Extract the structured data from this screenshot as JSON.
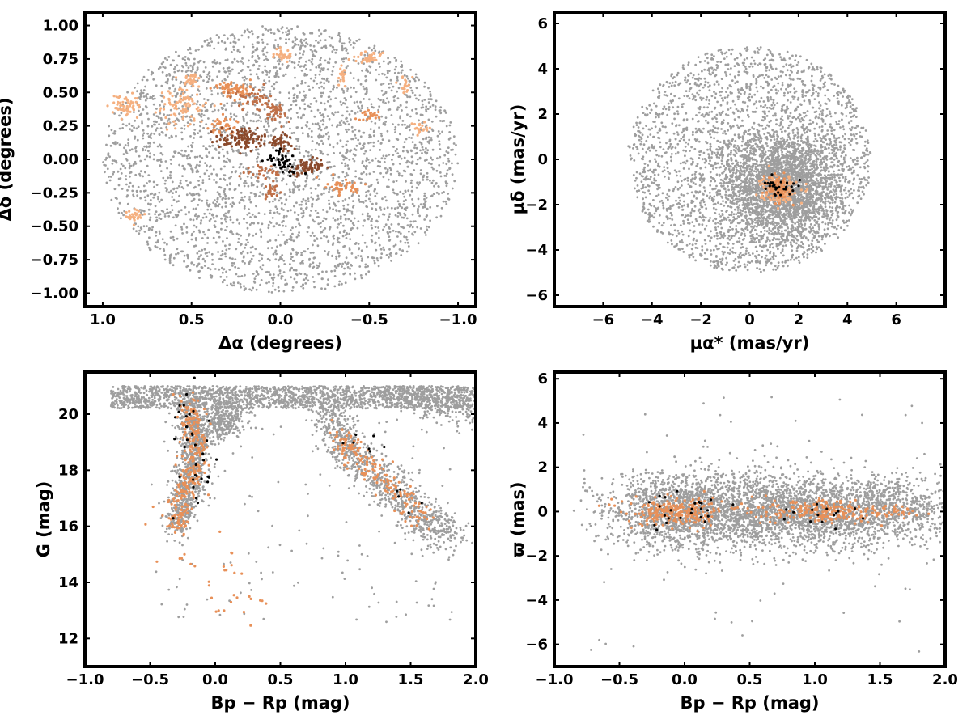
{
  "colors": {
    "field": "#9e9e9e",
    "members": [
      "#f5b080",
      "#e89058",
      "#c07048",
      "#8b4a2c"
    ],
    "core": "#000000"
  },
  "chart_data": [
    {
      "id": "sky",
      "type": "scatter",
      "xlabel": "Δα (degrees)",
      "ylabel": "Δδ (degrees)",
      "xlim": [
        1.1,
        -1.1
      ],
      "ylim": [
        -1.1,
        1.1
      ],
      "x_inverted": true,
      "xticks": [
        1.0,
        0.5,
        0.0,
        -0.5,
        -1.0
      ],
      "xtick_labels": [
        "1.0",
        "0.5",
        "0.0",
        "−0.5",
        "−1.0"
      ],
      "yticks": [
        1.0,
        0.75,
        0.5,
        0.25,
        0.0,
        -0.25,
        -0.5,
        -0.75,
        -1.0
      ],
      "ytick_labels": [
        "1.00",
        "0.75",
        "0.50",
        "0.25",
        "0.00",
        "−0.25",
        "−0.50",
        "−0.75",
        "−1.00"
      ],
      "field": {
        "shape": "disk",
        "center": [
          0,
          0
        ],
        "radius": 1.0,
        "count": 3200
      },
      "groups": [
        {
          "color_index": 0,
          "center": [
            0.87,
            0.4
          ],
          "spread": [
            0.04,
            0.04
          ],
          "count": 60
        },
        {
          "color_index": 0,
          "center": [
            0.55,
            0.42
          ],
          "spread": [
            0.06,
            0.08
          ],
          "count": 90
        },
        {
          "color_index": 0,
          "center": [
            0.5,
            0.6
          ],
          "spread": [
            0.02,
            0.02
          ],
          "count": 25
        },
        {
          "color_index": 1,
          "center": [
            0.32,
            0.25
          ],
          "spread": [
            0.04,
            0.03
          ],
          "count": 40
        },
        {
          "color_index": 0,
          "center": [
            0.82,
            -0.42
          ],
          "spread": [
            0.03,
            0.03
          ],
          "count": 30
        },
        {
          "color_index": 1,
          "center": [
            0.27,
            0.52
          ],
          "spread": [
            0.05,
            0.04
          ],
          "count": 70
        },
        {
          "color_index": 2,
          "center": [
            0.15,
            0.45
          ],
          "spread": [
            0.05,
            0.04
          ],
          "count": 45
        },
        {
          "color_index": 3,
          "center": [
            0.22,
            0.16
          ],
          "spread": [
            0.07,
            0.04
          ],
          "count": 110
        },
        {
          "color_index": 2,
          "center": [
            0.02,
            0.35
          ],
          "spread": [
            0.04,
            0.04
          ],
          "count": 40
        },
        {
          "color_index": 3,
          "center": [
            0.0,
            0.13
          ],
          "spread": [
            0.03,
            0.03
          ],
          "count": 40
        },
        {
          "color_index": 3,
          "center": [
            -0.15,
            -0.05
          ],
          "spread": [
            0.05,
            0.03
          ],
          "count": 65
        },
        {
          "color_index": 2,
          "center": [
            0.1,
            -0.1
          ],
          "spread": [
            0.05,
            0.03
          ],
          "count": 30
        },
        {
          "color_index": 2,
          "center": [
            0.05,
            -0.24
          ],
          "spread": [
            0.03,
            0.03
          ],
          "count": 25
        },
        {
          "color_index": 1,
          "center": [
            -0.35,
            -0.2
          ],
          "spread": [
            0.04,
            0.03
          ],
          "count": 45
        },
        {
          "color_index": 0,
          "center": [
            -0.02,
            0.78
          ],
          "spread": [
            0.03,
            0.02
          ],
          "count": 30
        },
        {
          "color_index": 0,
          "center": [
            -0.5,
            0.75
          ],
          "spread": [
            0.05,
            0.03
          ],
          "count": 35
        },
        {
          "color_index": 0,
          "center": [
            -0.35,
            0.62
          ],
          "spread": [
            0.02,
            0.04
          ],
          "count": 20
        },
        {
          "color_index": 0,
          "center": [
            -0.7,
            0.55
          ],
          "spread": [
            0.02,
            0.04
          ],
          "count": 20
        },
        {
          "color_index": 1,
          "center": [
            -0.5,
            0.33
          ],
          "spread": [
            0.03,
            0.02
          ],
          "count": 25
        },
        {
          "color_index": 0,
          "center": [
            -0.78,
            0.23
          ],
          "spread": [
            0.02,
            0.02
          ],
          "count": 20
        },
        {
          "color_index": -1,
          "center": [
            -0.02,
            -0.02
          ],
          "spread": [
            0.04,
            0.05
          ],
          "count": 45
        }
      ]
    },
    {
      "id": "propermotion",
      "type": "scatter",
      "xlabel": "μα* (mas/yr)",
      "ylabel": "μδ (mas/yr)",
      "xlim": [
        -8,
        8
      ],
      "ylim": [
        -6.5,
        6.5
      ],
      "xticks": [
        -6,
        -4,
        -2,
        0,
        2,
        4,
        6
      ],
      "xtick_labels": [
        "−6",
        "−4",
        "−2",
        "0",
        "2",
        "4",
        "6"
      ],
      "yticks": [
        6,
        4,
        2,
        0,
        -2,
        -4,
        -6
      ],
      "ytick_labels": [
        "6",
        "4",
        "2",
        "0",
        "−2",
        "−4",
        "−6"
      ],
      "field": {
        "shape": "disk",
        "center": [
          0,
          0
        ],
        "radius": 5.0,
        "count": 2400
      },
      "field_core": {
        "center": [
          1.3,
          -1.2
        ],
        "spread": [
          1.2,
          1.2
        ],
        "count": 2600
      },
      "groups": [
        {
          "color_index": 0,
          "center": [
            1.2,
            -1.3
          ],
          "spread": [
            0.35,
            0.3
          ],
          "count": 160
        },
        {
          "color_index": 1,
          "center": [
            1.1,
            -1.3
          ],
          "spread": [
            0.25,
            0.25
          ],
          "count": 80
        },
        {
          "color_index": -1,
          "center": [
            1.4,
            -1.3
          ],
          "spread": [
            0.4,
            0.2
          ],
          "count": 30
        }
      ]
    },
    {
      "id": "cmd",
      "type": "scatter",
      "xlabel": "Bp − Rp (mag)",
      "ylabel": "G (mag)",
      "xlim": [
        -1.0,
        2.0
      ],
      "ylim": [
        11,
        21.5
      ],
      "y_inverted": false,
      "xticks": [
        -1.0,
        -0.5,
        0.0,
        0.5,
        1.0,
        1.5,
        2.0
      ],
      "xtick_labels": [
        "−1.0",
        "−0.5",
        "0.0",
        "0.5",
        "1.0",
        "1.5",
        "2.0"
      ],
      "yticks": [
        20,
        18,
        16,
        14,
        12
      ],
      "ytick_labels": [
        "20",
        "18",
        "16",
        "14",
        "12"
      ],
      "field_regions": [
        {
          "kind": "band",
          "x": [
            -0.8,
            2.0
          ],
          "y": [
            20.2,
            21.0
          ],
          "count": 1800
        },
        {
          "kind": "track",
          "points": [
            [
              -0.2,
              20.4
            ],
            [
              -0.15,
              19.0
            ],
            [
              -0.2,
              17.5
            ],
            [
              -0.3,
              16.0
            ]
          ],
          "spread": [
            0.06,
            0.35
          ],
          "count": 900
        },
        {
          "kind": "track",
          "points": [
            [
              0.0,
              20.0
            ],
            [
              0.05,
              19.5
            ],
            [
              0.2,
              20.2
            ]
          ],
          "spread": [
            0.06,
            0.3
          ],
          "count": 300
        },
        {
          "kind": "track",
          "points": [
            [
              0.85,
              20.3
            ],
            [
              1.0,
              18.8
            ],
            [
              1.3,
              17.5
            ],
            [
              1.6,
              16.3
            ],
            [
              1.8,
              15.6
            ]
          ],
          "spread": [
            0.08,
            0.35
          ],
          "count": 900
        },
        {
          "kind": "track",
          "points": [
            [
              1.4,
              21.0
            ],
            [
              2.0,
              19.8
            ]
          ],
          "spread": [
            0.15,
            0.3
          ],
          "count": 300
        },
        {
          "kind": "scatter",
          "x": [
            -0.5,
            1.9
          ],
          "y": [
            12.5,
            20.0
          ],
          "count": 140
        }
      ],
      "groups": [
        {
          "color_index": 1,
          "track": [
            [
              -0.2,
              20.4
            ],
            [
              -0.15,
              19.0
            ],
            [
              -0.2,
              17.5
            ],
            [
              -0.3,
              16.0
            ]
          ],
          "spread": [
            0.05,
            0.3
          ],
          "count": 260
        },
        {
          "color_index": 1,
          "track": [
            [
              0.95,
              19.2
            ],
            [
              1.1,
              18.6
            ],
            [
              1.35,
              17.4
            ],
            [
              1.6,
              16.2
            ]
          ],
          "spread": [
            0.06,
            0.25
          ],
          "count": 170
        },
        {
          "color_index": 1,
          "track": [
            [
              -0.4,
              16.5
            ],
            [
              0.0,
              13.5
            ],
            [
              0.3,
              14.0
            ]
          ],
          "spread": [
            0.15,
            0.6
          ],
          "count": 40
        },
        {
          "color_index": -1,
          "track": [
            [
              -0.2,
              20.3
            ],
            [
              -0.1,
              18.5
            ],
            [
              -0.2,
              16.5
            ]
          ],
          "spread": [
            0.06,
            0.4
          ],
          "count": 35
        },
        {
          "color_index": -1,
          "track": [
            [
              0.9,
              19.0
            ],
            [
              1.2,
              18.8
            ],
            [
              1.5,
              16.8
            ]
          ],
          "spread": [
            0.1,
            0.3
          ],
          "count": 12
        }
      ]
    },
    {
      "id": "parallax",
      "type": "scatter",
      "xlabel": "Bp − Rp (mag)",
      "ylabel": "ϖ (mas)",
      "xlim": [
        -1.0,
        2.0
      ],
      "ylim": [
        -7,
        6.3
      ],
      "xticks": [
        -1.0,
        -0.5,
        0.0,
        0.5,
        1.0,
        1.5,
        2.0
      ],
      "xtick_labels": [
        "−1.0",
        "−0.5",
        "0.0",
        "0.5",
        "1.0",
        "1.5",
        "2.0"
      ],
      "yticks": [
        6,
        4,
        2,
        0,
        -2,
        -4,
        -6
      ],
      "ytick_labels": [
        "6",
        "4",
        "2",
        "0",
        "−2",
        "−4",
        "−6"
      ],
      "field_regions": [
        {
          "kind": "blob",
          "center": [
            -0.05,
            0.0
          ],
          "spread": [
            0.28,
            0.9
          ],
          "count": 1400
        },
        {
          "kind": "blob",
          "center": [
            1.05,
            0.0
          ],
          "spread": [
            0.35,
            0.8
          ],
          "count": 1500
        },
        {
          "kind": "blob",
          "center": [
            0.5,
            0.0
          ],
          "spread": [
            0.25,
            0.9
          ],
          "count": 700
        },
        {
          "kind": "blob",
          "center": [
            1.7,
            0.2
          ],
          "spread": [
            0.25,
            0.8
          ],
          "count": 500
        },
        {
          "kind": "scatter",
          "x": [
            -0.9,
            1.9
          ],
          "y": [
            -6.5,
            5.5
          ],
          "count": 80
        }
      ],
      "groups": [
        {
          "color_index": 1,
          "center": [
            -0.05,
            0.0
          ],
          "spread": [
            0.2,
            0.3
          ],
          "count": 240
        },
        {
          "color_index": 1,
          "center": [
            1.05,
            0.0
          ],
          "spread": [
            0.25,
            0.25
          ],
          "count": 200
        },
        {
          "color_index": 1,
          "center": [
            1.5,
            0.0
          ],
          "spread": [
            0.15,
            0.15
          ],
          "count": 40
        },
        {
          "color_index": -1,
          "center": [
            -0.05,
            0.0
          ],
          "spread": [
            0.15,
            0.4
          ],
          "count": 25
        },
        {
          "color_index": -1,
          "center": [
            1.1,
            0.0
          ],
          "spread": [
            0.2,
            0.3
          ],
          "count": 15
        }
      ]
    }
  ]
}
